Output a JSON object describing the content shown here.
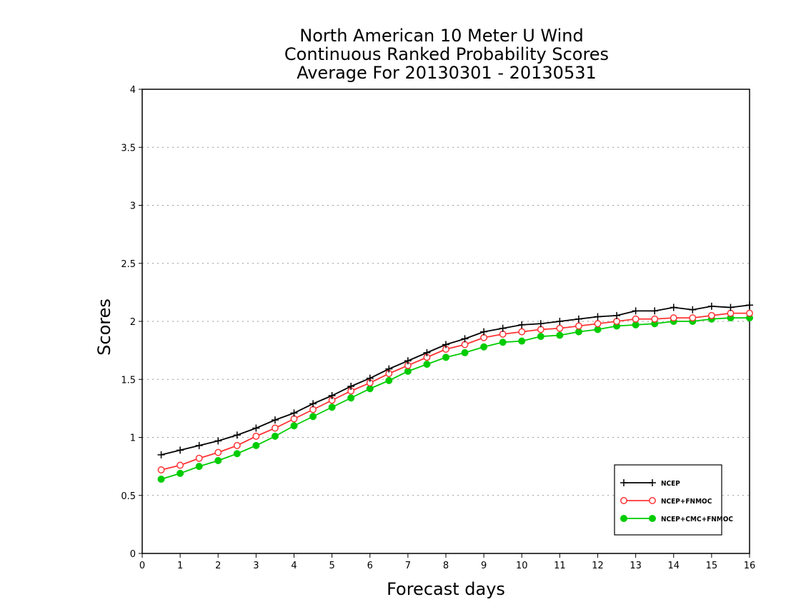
{
  "chart_data": {
    "type": "line",
    "title_lines": [
      "North American 10 Meter U Wind",
      "Continuous Ranked Probability Scores",
      "Average For 20130301 - 20130531"
    ],
    "xlabel": "Forecast days",
    "ylabel": "Scores",
    "xlim": [
      0,
      16
    ],
    "ylim": [
      0,
      4
    ],
    "xticks": [
      "0",
      "1",
      "2",
      "3",
      "4",
      "5",
      "6",
      "7",
      "8",
      "9",
      "10",
      "11",
      "12",
      "13",
      "14",
      "15",
      "16"
    ],
    "yticks": [
      "0",
      "0.5",
      "1",
      "1.5",
      "2",
      "2.5",
      "3",
      "3.5",
      "4"
    ],
    "grid": "horizontal dotted",
    "legend_position": "bottom-right",
    "x": [
      0.5,
      1,
      1.5,
      2,
      2.5,
      3,
      3.5,
      4,
      4.5,
      5,
      5.5,
      6,
      6.5,
      7,
      7.5,
      8,
      8.5,
      9,
      9.5,
      10,
      10.5,
      11,
      11.5,
      12,
      12.5,
      13,
      13.5,
      14,
      14.5,
      15,
      15.5,
      16
    ],
    "series": [
      {
        "name": "NCEP",
        "color": "#000000",
        "marker": "plus",
        "values": [
          0.85,
          0.89,
          0.93,
          0.97,
          1.02,
          1.08,
          1.15,
          1.21,
          1.29,
          1.36,
          1.44,
          1.51,
          1.59,
          1.66,
          1.73,
          1.8,
          1.85,
          1.91,
          1.94,
          1.97,
          1.98,
          2.0,
          2.02,
          2.04,
          2.05,
          2.09,
          2.09,
          2.12,
          2.1,
          2.13,
          2.12,
          2.14
        ]
      },
      {
        "name": "NCEP+FNMOC",
        "color": "#ff3333",
        "marker": "open-circle",
        "values": [
          0.72,
          0.76,
          0.82,
          0.87,
          0.93,
          1.01,
          1.08,
          1.16,
          1.24,
          1.32,
          1.4,
          1.47,
          1.55,
          1.62,
          1.69,
          1.76,
          1.8,
          1.86,
          1.89,
          1.91,
          1.93,
          1.94,
          1.96,
          1.98,
          2.0,
          2.02,
          2.02,
          2.03,
          2.03,
          2.05,
          2.07,
          2.07
        ]
      },
      {
        "name": "NCEP+CMC+FNMOC",
        "color": "#00cc00",
        "marker": "filled-circle",
        "values": [
          0.64,
          0.69,
          0.75,
          0.8,
          0.86,
          0.93,
          1.01,
          1.1,
          1.18,
          1.26,
          1.34,
          1.42,
          1.49,
          1.57,
          1.63,
          1.69,
          1.73,
          1.78,
          1.82,
          1.83,
          1.87,
          1.88,
          1.91,
          1.93,
          1.96,
          1.97,
          1.98,
          2.0,
          2.0,
          2.02,
          2.03,
          2.03
        ]
      }
    ]
  }
}
